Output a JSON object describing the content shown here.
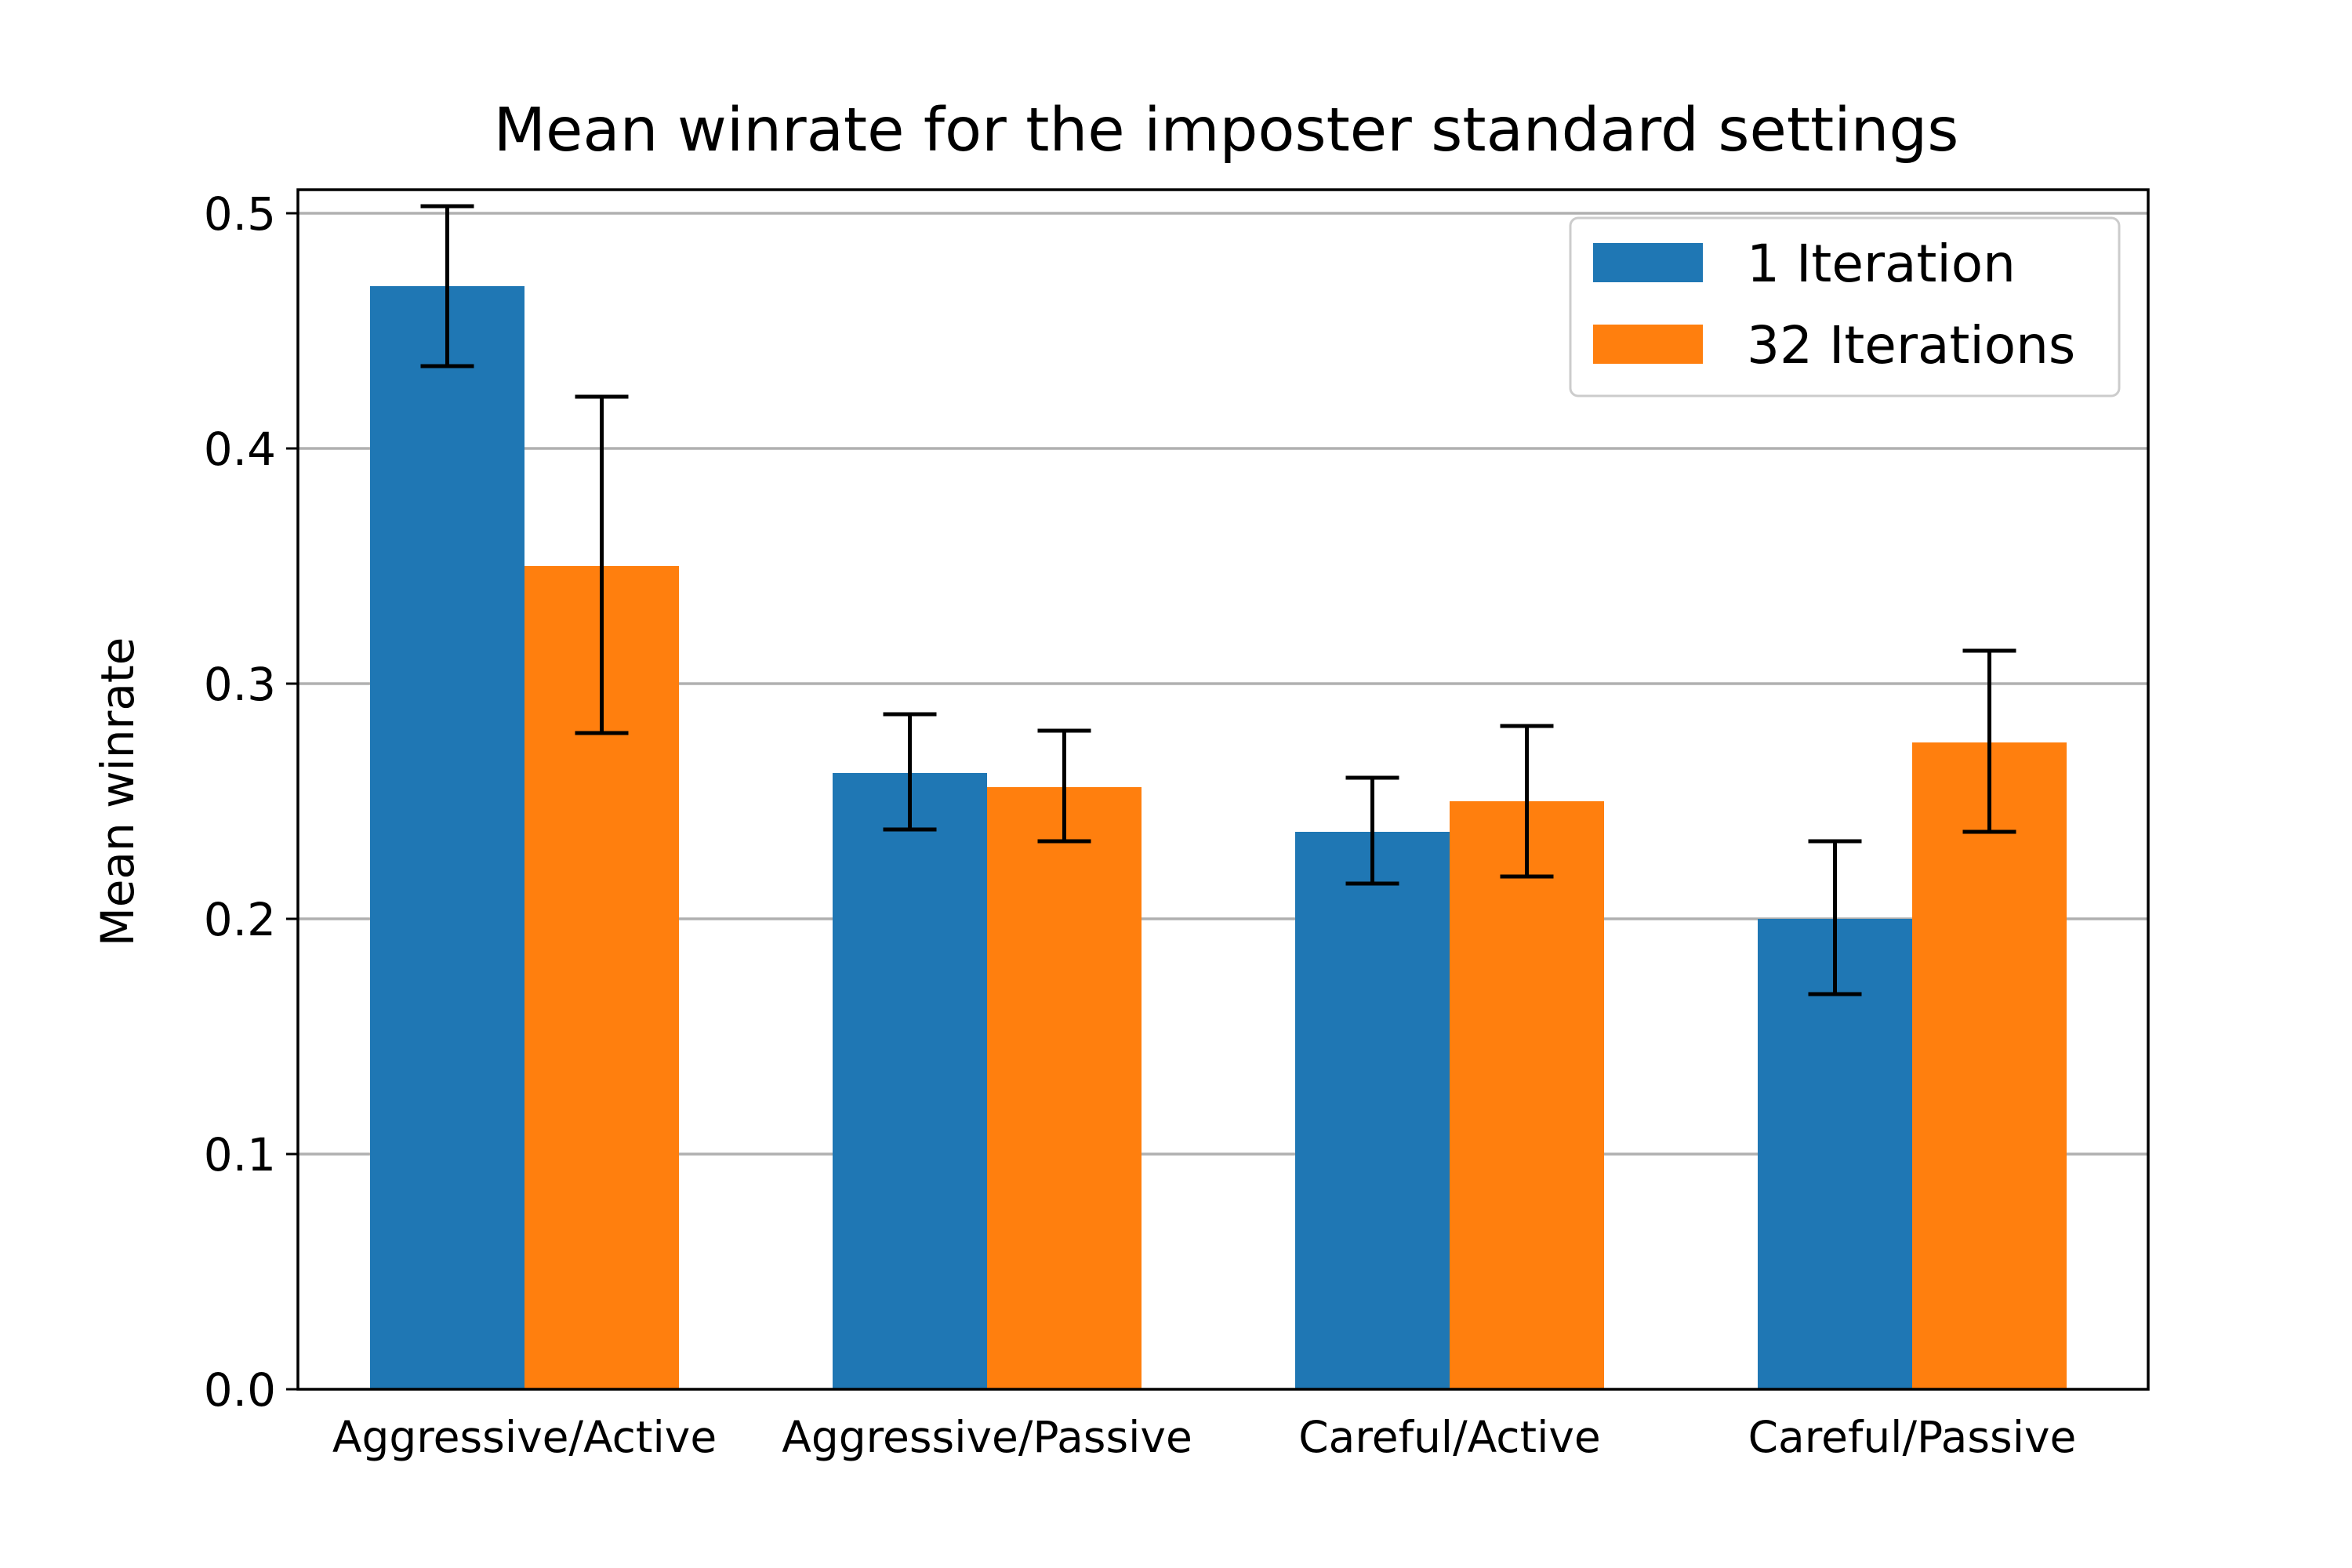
{
  "chart_data": {
    "type": "bar",
    "title": "Mean winrate for the imposter standard settings",
    "xlabel": "",
    "ylabel": "Mean winrate",
    "categories": [
      "Aggressive/Active",
      "Aggressive/Passive",
      "Careful/Active",
      "Careful/Passive"
    ],
    "series": [
      {
        "name": "1 Iteration",
        "color": "#1f77b4",
        "values": [
          0.469,
          0.262,
          0.237,
          0.2
        ],
        "error_low": [
          0.435,
          0.238,
          0.215,
          0.168
        ],
        "error_high": [
          0.503,
          0.287,
          0.26,
          0.233
        ]
      },
      {
        "name": "32 Iterations",
        "color": "#ff7f0e",
        "values": [
          0.35,
          0.256,
          0.25,
          0.275
        ],
        "error_low": [
          0.279,
          0.233,
          0.218,
          0.237
        ],
        "error_high": [
          0.422,
          0.28,
          0.282,
          0.314
        ]
      }
    ],
    "ylim": [
      0.0,
      0.51
    ],
    "yticks": [
      0.0,
      0.1,
      0.2,
      0.3,
      0.4,
      0.5
    ],
    "ytick_labels": [
      "0.0",
      "0.1",
      "0.2",
      "0.3",
      "0.4",
      "0.5"
    ],
    "grid": "horizontal",
    "legend_position": "top-right"
  }
}
